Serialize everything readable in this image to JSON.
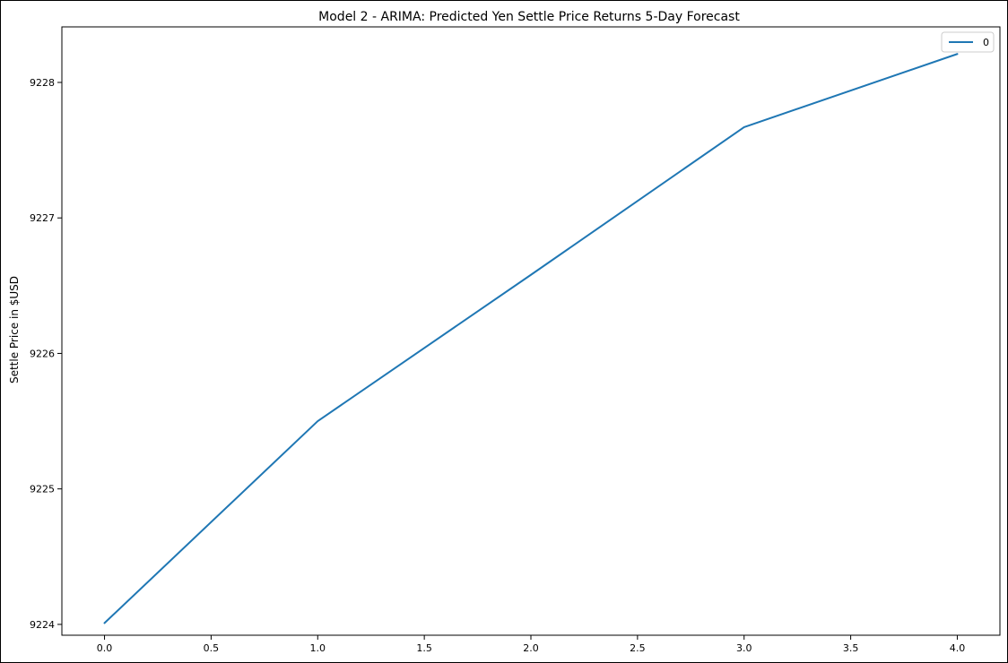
{
  "chart_data": {
    "type": "line",
    "title": "Model 2 - ARIMA: Predicted Yen Settle Price Returns 5-Day Forecast",
    "xlabel": "",
    "ylabel": "Settle Price in $USD",
    "x": [
      0,
      1,
      2,
      3,
      4
    ],
    "series": [
      {
        "name": "0",
        "values": [
          9224.01,
          9225.5,
          9226.58,
          9227.67,
          9228.21
        ],
        "color": "#1f77b4"
      }
    ],
    "xlim": [
      -0.2,
      4.2
    ],
    "ylim": [
      9223.92,
      9228.41
    ],
    "x_ticks": [
      0.0,
      0.5,
      1.0,
      1.5,
      2.0,
      2.5,
      3.0,
      3.5,
      4.0
    ],
    "x_tick_labels": [
      "0.0",
      "0.5",
      "1.0",
      "1.5",
      "2.0",
      "2.5",
      "3.0",
      "3.5",
      "4.0"
    ],
    "y_ticks": [
      9224,
      9225,
      9226,
      9227,
      9228
    ],
    "y_tick_labels": [
      "9224",
      "9225",
      "9226",
      "9227",
      "9228"
    ],
    "grid": false,
    "legend_position": "top-right"
  }
}
